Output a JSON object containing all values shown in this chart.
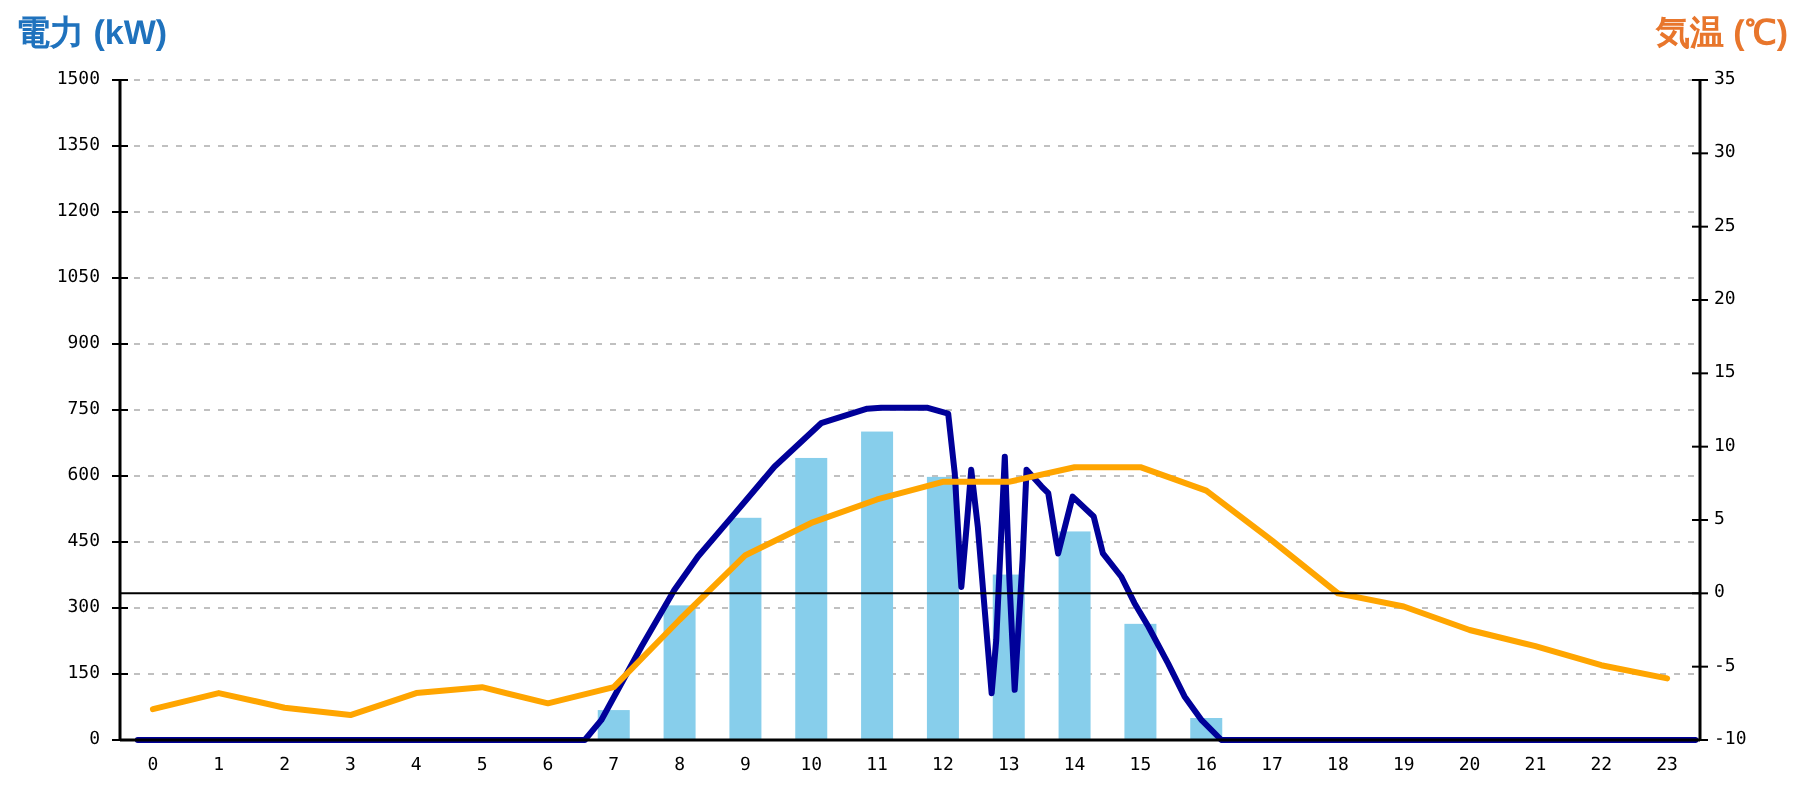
{
  "chart_data": {
    "type": "bar",
    "ylabel": "電力 (kW)",
    "y2label": "気温 (℃)",
    "x": [
      0,
      1,
      2,
      3,
      4,
      5,
      6,
      7,
      8,
      9,
      10,
      11,
      12,
      13,
      14,
      15,
      16,
      17,
      18,
      19,
      20,
      21,
      22,
      23
    ],
    "xlim": [
      -0.5,
      23.5
    ],
    "xticks": [
      0,
      1,
      2,
      3,
      4,
      5,
      6,
      7,
      8,
      9,
      10,
      11,
      12,
      13,
      14,
      15,
      16,
      17,
      18,
      19,
      20,
      21,
      22,
      23
    ],
    "ylim": [
      0,
      1500
    ],
    "yticks": [
      0,
      150,
      300,
      450,
      600,
      750,
      900,
      1050,
      1200,
      1350,
      1500
    ],
    "y2lim": [
      -10,
      35
    ],
    "y2ticks": [
      -10,
      -5,
      0,
      5,
      10,
      15,
      20,
      25,
      30,
      35
    ],
    "grid": "y",
    "series": [
      {
        "color": "#87ceeb",
        "values": [
          0,
          0,
          0,
          0,
          0,
          0,
          0,
          68,
          306,
          505,
          641,
          701,
          598,
          376,
          474,
          264,
          50,
          0,
          0,
          0,
          0,
          0,
          0,
          0
        ]
      },
      {
        "type": "line",
        "color": "#000099",
        "x": [
          -0.23,
          6.56,
          6.81,
          7.42,
          7.92,
          8.28,
          8.84,
          9.44,
          10.15,
          10.85,
          11.06,
          11.77,
          12.08,
          12.18,
          12.28,
          12.36,
          12.43,
          12.53,
          12.74,
          12.81,
          12.94,
          13.01,
          13.09,
          13.21,
          13.27,
          13.5,
          13.6,
          13.75,
          13.97,
          14.29,
          14.43,
          14.71,
          14.91,
          15.12,
          15.42,
          15.67,
          15.93,
          16.23,
          23.43
        ],
        "values": [
          0,
          0,
          45,
          212,
          341,
          417,
          515,
          621,
          720,
          753,
          755,
          755,
          742,
          606,
          348,
          485,
          614,
          485,
          106,
          227,
          644,
          364,
          114,
          409,
          614,
          576,
          561,
          424,
          553,
          508,
          424,
          371,
          311,
          258,
          174,
          99,
          45,
          0,
          0
        ]
      },
      {
        "type": "line",
        "axis": "y2",
        "color": "#ffa500",
        "values": [
          -7.9,
          -6.8,
          -7.8,
          -8.3,
          -6.8,
          -6.4,
          -7.5,
          -6.4,
          -1.8,
          2.6,
          4.8,
          6.4,
          7.6,
          7.6,
          8.6,
          8.6,
          7.0,
          3.6,
          0.0,
          -0.9,
          -2.5,
          -3.6,
          -4.9,
          -5.8
        ]
      }
    ],
    "ref_lines": [
      {
        "axis": "y2",
        "value": 0,
        "color": "#000000"
      }
    ]
  }
}
